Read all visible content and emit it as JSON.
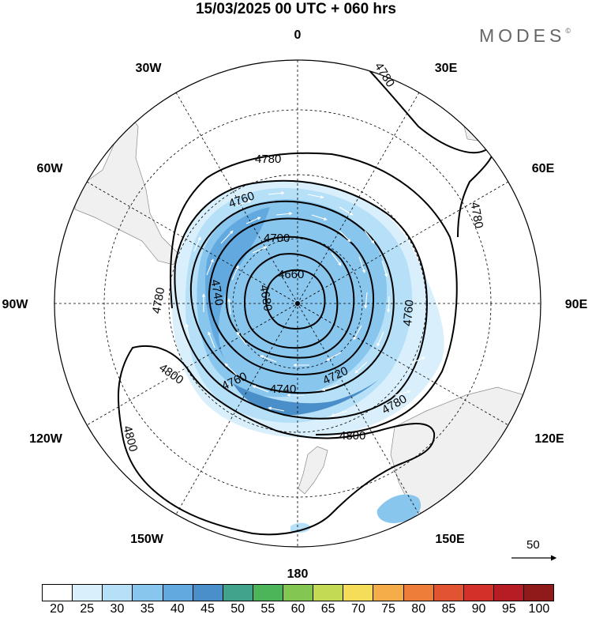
{
  "header": {
    "title": "15/03/2025  00 UTC  + 060 hrs",
    "brand": "MODES",
    "brand_mark": "©"
  },
  "map": {
    "projection": "south-polar-stereographic",
    "ocean_color": "#ffffff",
    "land_color": "#f0f0f0",
    "contour_color": "#000000",
    "longitude_labels": [
      {
        "name": "lon-0",
        "text": "0"
      },
      {
        "name": "lon-30e",
        "text": "30E"
      },
      {
        "name": "lon-60e",
        "text": "60E"
      },
      {
        "name": "lon-90e",
        "text": "90E"
      },
      {
        "name": "lon-120e",
        "text": "120E"
      },
      {
        "name": "lon-150e",
        "text": "150E"
      },
      {
        "name": "lon-180",
        "text": "180"
      },
      {
        "name": "lon-150w",
        "text": "150W"
      },
      {
        "name": "lon-120w",
        "text": "120W"
      },
      {
        "name": "lon-90w",
        "text": "90W"
      },
      {
        "name": "lon-60w",
        "text": "60W"
      },
      {
        "name": "lon-30w",
        "text": "30W"
      }
    ],
    "contour_labels": [
      "4780",
      "4780",
      "4780",
      "4780",
      "4760",
      "4760",
      "4760",
      "4740",
      "4740",
      "4720",
      "4700",
      "4680",
      "4660",
      "4780",
      "4800",
      "4800",
      "4800"
    ],
    "vector_reference": "50"
  },
  "legend": {
    "levels": [
      "20",
      "25",
      "30",
      "35",
      "40",
      "45",
      "50",
      "55",
      "60",
      "65",
      "70",
      "75",
      "80",
      "85",
      "90",
      "95",
      "100"
    ],
    "colors": [
      "#ffffff",
      "#d9f0fc",
      "#b5e0f8",
      "#89c6ee",
      "#62a9e0",
      "#4a8fc9",
      "#42a38c",
      "#4cb559",
      "#83c651",
      "#c3da55",
      "#f5dd5a",
      "#f4ad48",
      "#ee7d3a",
      "#e25431",
      "#d23029",
      "#b61c23",
      "#8f1a1a"
    ]
  }
}
